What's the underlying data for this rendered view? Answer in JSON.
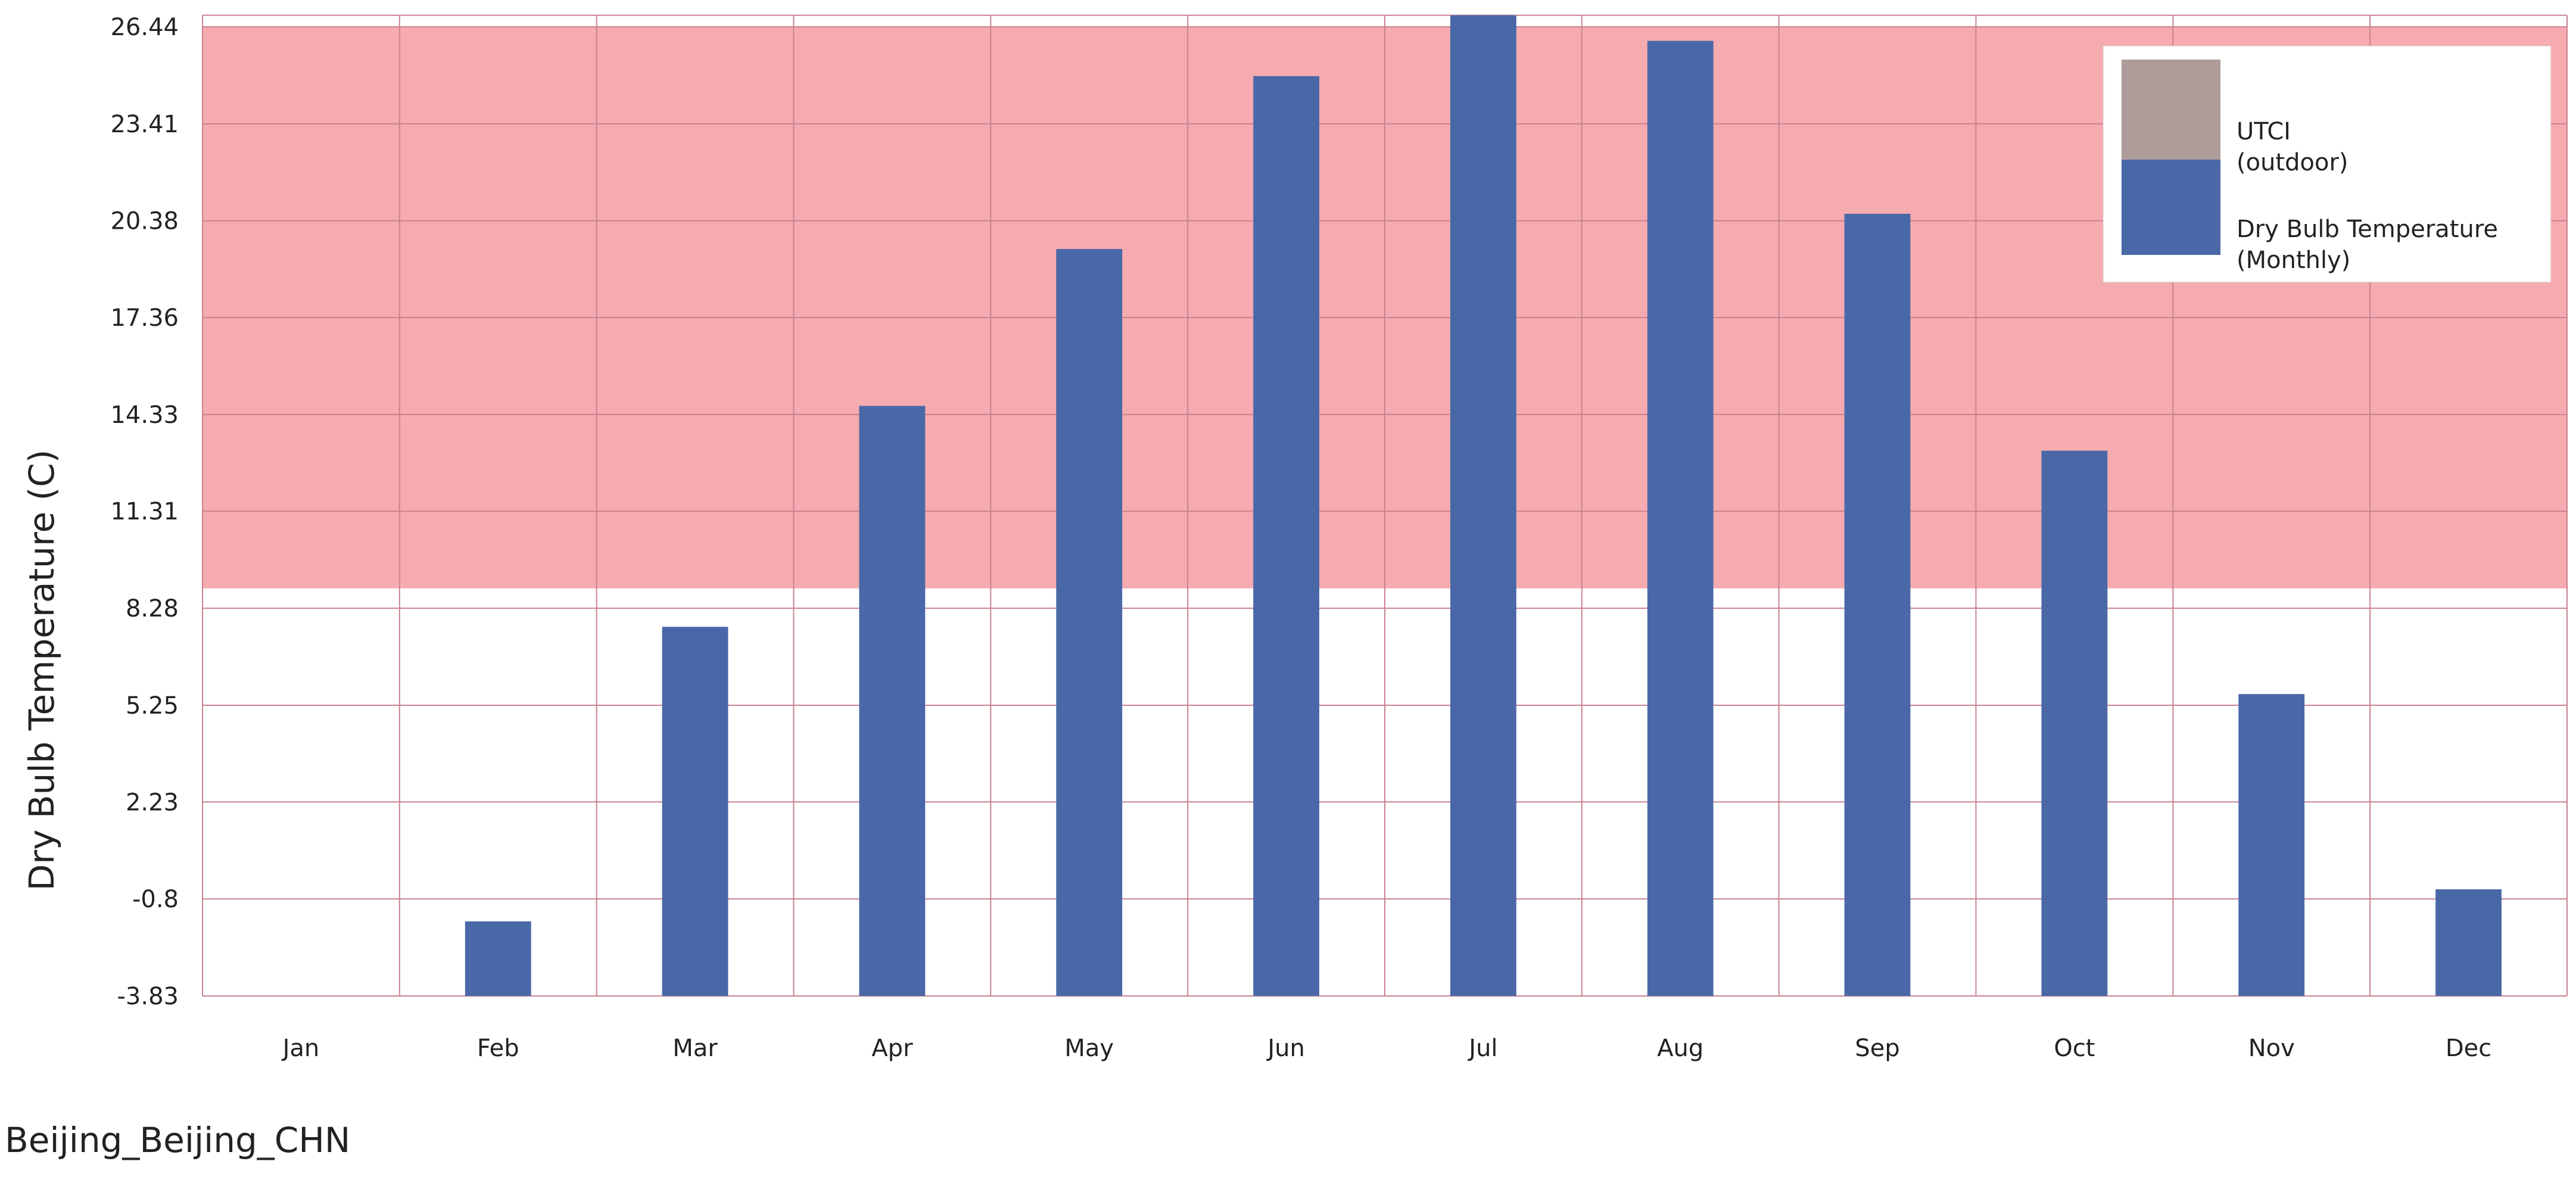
{
  "chart_data": {
    "type": "bar",
    "title": "",
    "xlabel": "",
    "ylabel": "Dry Bulb Temperature (C)",
    "categories": [
      "Jan",
      "Feb",
      "Mar",
      "Apr",
      "May",
      "Jun",
      "Jul",
      "Aug",
      "Sep",
      "Oct",
      "Nov",
      "Dec"
    ],
    "series": [
      {
        "name": "Dry Bulb Temperature (Monthly)",
        "color": "#4a68a8",
        "values": [
          -3.83,
          -1.5,
          7.7,
          14.6,
          19.5,
          24.9,
          26.8,
          26.0,
          20.6,
          13.2,
          5.6,
          -0.5
        ]
      }
    ],
    "highlight_band": {
      "name": "UTCI (outdoor)",
      "legend_color": "#ae9c9a",
      "fill_color": "#f5abb0",
      "y_from": 8.9,
      "y_to": 26.44
    },
    "y_ticks": [
      "26.44",
      "23.41",
      "20.38",
      "17.36",
      "14.33",
      "11.31",
      "8.28",
      "5.25",
      "2.23",
      "-0.8",
      "-3.83"
    ],
    "ylim": [
      -3.83,
      26.8
    ],
    "grid": true,
    "grid_color": "#c9838f",
    "legend": {
      "position": "top-right",
      "entries": [
        {
          "line1": "UTCI",
          "line2": "(outdoor)"
        },
        {
          "line1": "Dry Bulb Temperature",
          "line2": "(Monthly)"
        }
      ]
    }
  },
  "footer": {
    "location": "Beijing_Beijing_CHN"
  }
}
